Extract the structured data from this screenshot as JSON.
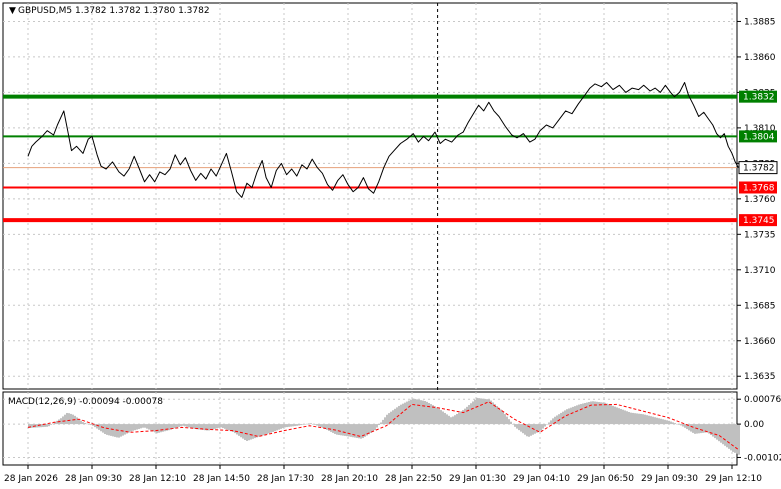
{
  "chart_data": [
    {
      "type": "line",
      "title": "GBPUSD,M5  1.3782 1.3782 1.3780 1.3782",
      "symbol": "GBPUSD",
      "timeframe": "M5",
      "ohlc": [
        "1.3782",
        "1.3782",
        "1.3780",
        "1.3782"
      ],
      "current_price": 1.3782,
      "current_price_label": "1.3782",
      "ylim": [
        1.3626,
        1.3898
      ],
      "y_ticks": [
        {
          "value": 1.3885,
          "label": "1.3885"
        },
        {
          "value": 1.386,
          "label": "1.3860"
        },
        {
          "value": 1.3835,
          "label": "1.3835"
        },
        {
          "value": 1.381,
          "label": "1.3810"
        },
        {
          "value": 1.3785,
          "label": "1.3785"
        },
        {
          "value": 1.376,
          "label": "1.3760"
        },
        {
          "value": 1.3735,
          "label": "1.3735"
        },
        {
          "value": 1.371,
          "label": "1.3710"
        },
        {
          "value": 1.3685,
          "label": "1.3685"
        },
        {
          "value": 1.366,
          "label": "1.3660"
        },
        {
          "value": 1.3635,
          "label": "1.3635"
        }
      ],
      "x_ticks": [
        "28 Jan 2026",
        "28 Jan 09:30",
        "28 Jan 12:10",
        "28 Jan 14:50",
        "28 Jan 17:30",
        "28 Jan 20:10",
        "28 Jan 22:50",
        "29 Jan 01:30",
        "29 Jan 04:10",
        "29 Jan 06:50",
        "29 Jan 09:30",
        "29 Jan 12:10"
      ],
      "grid": true,
      "session_separator_index": 6.4,
      "levels": [
        {
          "value": 1.3832,
          "label": "1.3832",
          "color": "#008000",
          "weight": "thick"
        },
        {
          "value": 1.3804,
          "label": "1.3804",
          "color": "#008000",
          "weight": "thin"
        },
        {
          "value": 1.3768,
          "label": "1.3768",
          "color": "#ff0000",
          "weight": "thin"
        },
        {
          "value": 1.3745,
          "label": "1.3745",
          "color": "#ff0000",
          "weight": "thick"
        }
      ],
      "price_path": [
        [
          0.0,
          1.379
        ],
        [
          0.06,
          1.3797
        ],
        [
          0.12,
          1.38
        ],
        [
          0.22,
          1.3804
        ],
        [
          0.3,
          1.3808
        ],
        [
          0.4,
          1.3805
        ],
        [
          0.46,
          1.3812
        ],
        [
          0.56,
          1.3822
        ],
        [
          0.62,
          1.3808
        ],
        [
          0.68,
          1.3794
        ],
        [
          0.76,
          1.3797
        ],
        [
          0.86,
          1.3792
        ],
        [
          0.94,
          1.3802
        ],
        [
          1.0,
          1.3804
        ],
        [
          1.08,
          1.3791
        ],
        [
          1.14,
          1.3783
        ],
        [
          1.22,
          1.3781
        ],
        [
          1.32,
          1.3786
        ],
        [
          1.42,
          1.3779
        ],
        [
          1.5,
          1.3776
        ],
        [
          1.58,
          1.3781
        ],
        [
          1.66,
          1.379
        ],
        [
          1.74,
          1.3781
        ],
        [
          1.82,
          1.3772
        ],
        [
          1.9,
          1.3777
        ],
        [
          1.98,
          1.3772
        ],
        [
          2.06,
          1.3779
        ],
        [
          2.14,
          1.3777
        ],
        [
          2.22,
          1.3781
        ],
        [
          2.3,
          1.3791
        ],
        [
          2.38,
          1.3784
        ],
        [
          2.46,
          1.3789
        ],
        [
          2.54,
          1.378
        ],
        [
          2.62,
          1.3773
        ],
        [
          2.7,
          1.3778
        ],
        [
          2.78,
          1.3774
        ],
        [
          2.86,
          1.3781
        ],
        [
          2.94,
          1.3776
        ],
        [
          3.02,
          1.3784
        ],
        [
          3.1,
          1.3792
        ],
        [
          3.18,
          1.3779
        ],
        [
          3.26,
          1.3765
        ],
        [
          3.34,
          1.3761
        ],
        [
          3.42,
          1.3771
        ],
        [
          3.5,
          1.3768
        ],
        [
          3.58,
          1.3779
        ],
        [
          3.66,
          1.3787
        ],
        [
          3.72,
          1.3775
        ],
        [
          3.8,
          1.3768
        ],
        [
          3.88,
          1.378
        ],
        [
          3.96,
          1.3785
        ],
        [
          4.04,
          1.3777
        ],
        [
          4.12,
          1.3781
        ],
        [
          4.2,
          1.3776
        ],
        [
          4.28,
          1.3784
        ],
        [
          4.36,
          1.3781
        ],
        [
          4.44,
          1.3788
        ],
        [
          4.52,
          1.3782
        ],
        [
          4.6,
          1.3778
        ],
        [
          4.68,
          1.377
        ],
        [
          4.76,
          1.3766
        ],
        [
          4.84,
          1.3773
        ],
        [
          4.92,
          1.3777
        ],
        [
          5.0,
          1.377
        ],
        [
          5.08,
          1.3765
        ],
        [
          5.16,
          1.3768
        ],
        [
          5.24,
          1.3775
        ],
        [
          5.32,
          1.3767
        ],
        [
          5.4,
          1.3764
        ],
        [
          5.48,
          1.3772
        ],
        [
          5.56,
          1.3782
        ],
        [
          5.64,
          1.379
        ],
        [
          5.72,
          1.3794
        ],
        [
          5.82,
          1.3799
        ],
        [
          5.92,
          1.3802
        ],
        [
          6.02,
          1.3806
        ],
        [
          6.1,
          1.38
        ],
        [
          6.18,
          1.3804
        ],
        [
          6.26,
          1.3801
        ],
        [
          6.36,
          1.3807
        ],
        [
          6.44,
          1.3799
        ],
        [
          6.52,
          1.3802
        ],
        [
          6.62,
          1.38
        ],
        [
          6.72,
          1.3805
        ],
        [
          6.8,
          1.3807
        ],
        [
          6.88,
          1.3814
        ],
        [
          6.96,
          1.382
        ],
        [
          7.04,
          1.3826
        ],
        [
          7.12,
          1.3822
        ],
        [
          7.2,
          1.3828
        ],
        [
          7.28,
          1.3822
        ],
        [
          7.36,
          1.3818
        ],
        [
          7.46,
          1.3811
        ],
        [
          7.56,
          1.3805
        ],
        [
          7.64,
          1.3803
        ],
        [
          7.74,
          1.3806
        ],
        [
          7.84,
          1.38
        ],
        [
          7.92,
          1.3802
        ],
        [
          8.0,
          1.3808
        ],
        [
          8.1,
          1.3812
        ],
        [
          8.2,
          1.381
        ],
        [
          8.3,
          1.3816
        ],
        [
          8.4,
          1.3822
        ],
        [
          8.5,
          1.382
        ],
        [
          8.6,
          1.3827
        ],
        [
          8.7,
          1.3833
        ],
        [
          8.78,
          1.3838
        ],
        [
          8.86,
          1.3841
        ],
        [
          8.96,
          1.3839
        ],
        [
          9.04,
          1.3842
        ],
        [
          9.14,
          1.3837
        ],
        [
          9.24,
          1.384
        ],
        [
          9.34,
          1.3835
        ],
        [
          9.44,
          1.3838
        ],
        [
          9.54,
          1.3837
        ],
        [
          9.62,
          1.384
        ],
        [
          9.72,
          1.3836
        ],
        [
          9.8,
          1.3838
        ],
        [
          9.88,
          1.3835
        ],
        [
          9.96,
          1.384
        ],
        [
          10.04,
          1.3835
        ],
        [
          10.1,
          1.3832
        ],
        [
          10.18,
          1.3835
        ],
        [
          10.26,
          1.3842
        ],
        [
          10.32,
          1.3833
        ],
        [
          10.4,
          1.3826
        ],
        [
          10.48,
          1.3818
        ],
        [
          10.56,
          1.3821
        ],
        [
          10.62,
          1.3817
        ],
        [
          10.7,
          1.3812
        ],
        [
          10.76,
          1.3806
        ],
        [
          10.82,
          1.3803
        ],
        [
          10.88,
          1.3806
        ],
        [
          10.94,
          1.3797
        ],
        [
          11.0,
          1.3792
        ],
        [
          11.05,
          1.3786
        ],
        [
          11.1,
          1.3782
        ]
      ]
    },
    {
      "type": "bar",
      "title": "MACD(12,26,9) -0.00094 -0.00078",
      "indicator": "MACD(12,26,9)",
      "readings": [
        "-0.00094",
        "-0.00078"
      ],
      "ylim": [
        -0.00125,
        0.00098
      ],
      "y_ticks": [
        {
          "value": 0.00076,
          "label": "0.00076"
        },
        {
          "value": 0.0,
          "label": "0.00"
        },
        {
          "value": -0.00102,
          "label": "-0.00102"
        }
      ],
      "histogram_color": "#c0c0c0",
      "signal_color": "#ff0000",
      "histogram": [
        [
          0.0,
          -0.00012
        ],
        [
          0.3,
          -8e-05
        ],
        [
          0.5,
          0.00018
        ],
        [
          0.6,
          0.00035
        ],
        [
          0.7,
          0.00028
        ],
        [
          0.85,
          5e-05
        ],
        [
          1.0,
          -5e-05
        ],
        [
          1.2,
          -0.00032
        ],
        [
          1.4,
          -0.00042
        ],
        [
          1.6,
          -0.00022
        ],
        [
          1.8,
          -0.0001
        ],
        [
          2.0,
          -0.00028
        ],
        [
          2.2,
          -0.00018
        ],
        [
          2.4,
          -5e-05
        ],
        [
          2.6,
          -0.00015
        ],
        [
          2.8,
          -0.0002
        ],
        [
          3.0,
          -0.0001
        ],
        [
          3.2,
          -0.00025
        ],
        [
          3.4,
          -0.00052
        ],
        [
          3.6,
          -0.00038
        ],
        [
          3.8,
          -0.00025
        ],
        [
          4.0,
          -0.0001
        ],
        [
          4.2,
          -5e-05
        ],
        [
          4.4,
          3e-05
        ],
        [
          4.6,
          -0.00012
        ],
        [
          4.8,
          -0.00032
        ],
        [
          5.0,
          -0.00038
        ],
        [
          5.2,
          -0.00045
        ],
        [
          5.4,
          -0.0002
        ],
        [
          5.6,
          0.0003
        ],
        [
          5.8,
          0.00058
        ],
        [
          6.0,
          0.00078
        ],
        [
          6.2,
          0.0007
        ],
        [
          6.4,
          0.00048
        ],
        [
          6.6,
          0.0002
        ],
        [
          6.8,
          0.00045
        ],
        [
          7.0,
          0.0008
        ],
        [
          7.2,
          0.00075
        ],
        [
          7.4,
          0.0004
        ],
        [
          7.6,
          -0.0001
        ],
        [
          7.8,
          -0.0004
        ],
        [
          8.0,
          -0.0002
        ],
        [
          8.2,
          0.0002
        ],
        [
          8.4,
          0.00045
        ],
        [
          8.6,
          0.0006
        ],
        [
          8.8,
          0.0007
        ],
        [
          9.0,
          0.00065
        ],
        [
          9.2,
          0.0005
        ],
        [
          9.4,
          0.00035
        ],
        [
          9.6,
          0.0003
        ],
        [
          9.8,
          0.0002
        ],
        [
          10.0,
          0.0001
        ],
        [
          10.2,
          -5e-05
        ],
        [
          10.4,
          -0.0003
        ],
        [
          10.6,
          -0.00025
        ],
        [
          10.8,
          -0.00055
        ],
        [
          11.0,
          -0.00085
        ],
        [
          11.1,
          -0.00094
        ]
      ],
      "signal_line": [
        [
          0.0,
          -0.0001
        ],
        [
          0.4,
          5e-05
        ],
        [
          0.8,
          0.00015
        ],
        [
          1.2,
          -0.00012
        ],
        [
          1.6,
          -0.00025
        ],
        [
          2.0,
          -0.0002
        ],
        [
          2.4,
          -0.0001
        ],
        [
          2.8,
          -0.00016
        ],
        [
          3.2,
          -0.0002
        ],
        [
          3.6,
          -0.00038
        ],
        [
          4.0,
          -0.0002
        ],
        [
          4.4,
          -5e-05
        ],
        [
          4.8,
          -0.00018
        ],
        [
          5.2,
          -0.00038
        ],
        [
          5.6,
          -5e-05
        ],
        [
          6.0,
          0.0006
        ],
        [
          6.4,
          0.0005
        ],
        [
          6.8,
          0.00035
        ],
        [
          7.2,
          0.00068
        ],
        [
          7.6,
          0.00015
        ],
        [
          8.0,
          -0.00025
        ],
        [
          8.4,
          0.00025
        ],
        [
          8.8,
          0.00058
        ],
        [
          9.2,
          0.0006
        ],
        [
          9.6,
          0.0004
        ],
        [
          10.0,
          0.0002
        ],
        [
          10.4,
          -0.0001
        ],
        [
          10.8,
          -0.00035
        ],
        [
          11.1,
          -0.00078
        ]
      ]
    }
  ]
}
